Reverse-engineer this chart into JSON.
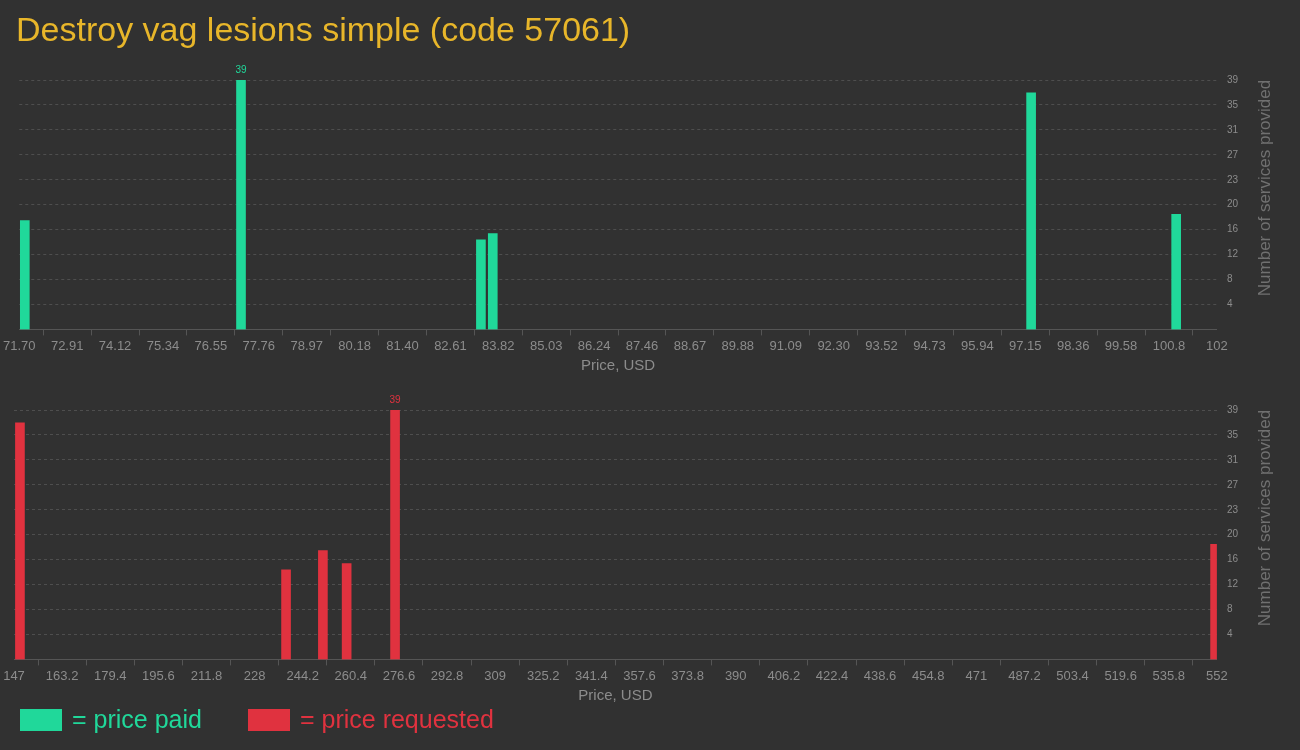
{
  "chart_data": [
    {
      "type": "bar",
      "title": "Destroy vag lesions simple (code 57061)",
      "xlabel": "Price, USD",
      "ylabel": "Number of services provided",
      "series": [
        {
          "name": "= price paid",
          "color": "#20d89a",
          "x": [
            71.84,
            77.31,
            83.38,
            83.68,
            97.3,
            100.97
          ],
          "values": [
            17,
            39,
            14,
            15,
            37,
            18
          ],
          "value_labels": [
            null,
            "39",
            null,
            null,
            null,
            null
          ]
        }
      ],
      "xlim": [
        71.7,
        102
      ],
      "xticks": [
        {
          "value": 71.7,
          "label": "71.70"
        },
        {
          "value": 72.912,
          "label": "72.91"
        },
        {
          "value": 74.124,
          "label": "74.12"
        },
        {
          "value": 75.336,
          "label": "75.34"
        },
        {
          "value": 76.548,
          "label": "76.55"
        },
        77.76,
        {
          "value": 78.972,
          "label": "78.97"
        },
        {
          "value": 80.184,
          "label": "80.18"
        },
        {
          "value": 81.396,
          "label": "81.40"
        },
        {
          "value": 82.608,
          "label": "82.61"
        },
        83.82,
        {
          "value": 85.032,
          "label": "85.03"
        },
        {
          "value": 86.244,
          "label": "86.24"
        },
        {
          "value": 87.456,
          "label": "87.46"
        },
        {
          "value": 88.668,
          "label": "88.67"
        },
        89.88,
        {
          "value": 91.092,
          "label": "91.09"
        },
        {
          "value": 92.304,
          "label": "92.30"
        },
        {
          "value": 93.516,
          "label": "93.52"
        },
        {
          "value": 94.728,
          "label": "94.73"
        },
        95.94,
        {
          "value": 97.152,
          "label": "97.15"
        },
        {
          "value": 98.364,
          "label": "98.36"
        },
        {
          "value": 99.576,
          "label": "99.58"
        },
        {
          "value": 100.788,
          "label": "100.8"
        },
        102
      ],
      "ylim": [
        0,
        39
      ],
      "yticks": [
        {
          "value": 3.9,
          "label": "4"
        },
        {
          "value": 7.8,
          "label": "8"
        },
        {
          "value": 11.7,
          "label": "12"
        },
        {
          "value": 15.6,
          "label": "16"
        },
        {
          "value": 19.5,
          "label": "20"
        },
        {
          "value": 23.4,
          "label": "23"
        },
        {
          "value": 27.3,
          "label": "27"
        },
        {
          "value": 31.2,
          "label": "31"
        },
        {
          "value": 35.1,
          "label": "35"
        },
        39
      ],
      "grid": "y",
      "legend": "bottom left"
    },
    {
      "type": "bar",
      "xlabel": "Price, USD",
      "ylabel": "Number of services provided",
      "series": [
        {
          "name": "= price requested",
          "color": "#e0323f",
          "x": [
            149,
            238.6,
            251,
            259,
            275.3,
            551.4
          ],
          "values": [
            37,
            14,
            17,
            15,
            39,
            18
          ],
          "value_labels": [
            null,
            null,
            null,
            null,
            "39",
            null
          ]
        }
      ],
      "xlim": [
        147,
        552
      ],
      "xticks": [
        147,
        163.2,
        179.4,
        195.6,
        211.8,
        228,
        244.2,
        260.4,
        276.6,
        292.8,
        309,
        325.2,
        341.4,
        357.6,
        373.8,
        390,
        406.2,
        422.4,
        438.6,
        454.8,
        471,
        487.2,
        503.4,
        519.6,
        535.8,
        552
      ],
      "ylim": [
        0,
        39
      ],
      "yticks": [
        {
          "value": 3.9,
          "label": "4"
        },
        {
          "value": 7.8,
          "label": "8"
        },
        {
          "value": 11.7,
          "label": "12"
        },
        {
          "value": 15.6,
          "label": "16"
        },
        {
          "value": 19.5,
          "label": "20"
        },
        {
          "value": 23.4,
          "label": "23"
        },
        {
          "value": 27.3,
          "label": "27"
        },
        {
          "value": 31.2,
          "label": "31"
        },
        {
          "value": 35.1,
          "label": "35"
        },
        39
      ],
      "grid": "y",
      "legend": "bottom left"
    }
  ]
}
